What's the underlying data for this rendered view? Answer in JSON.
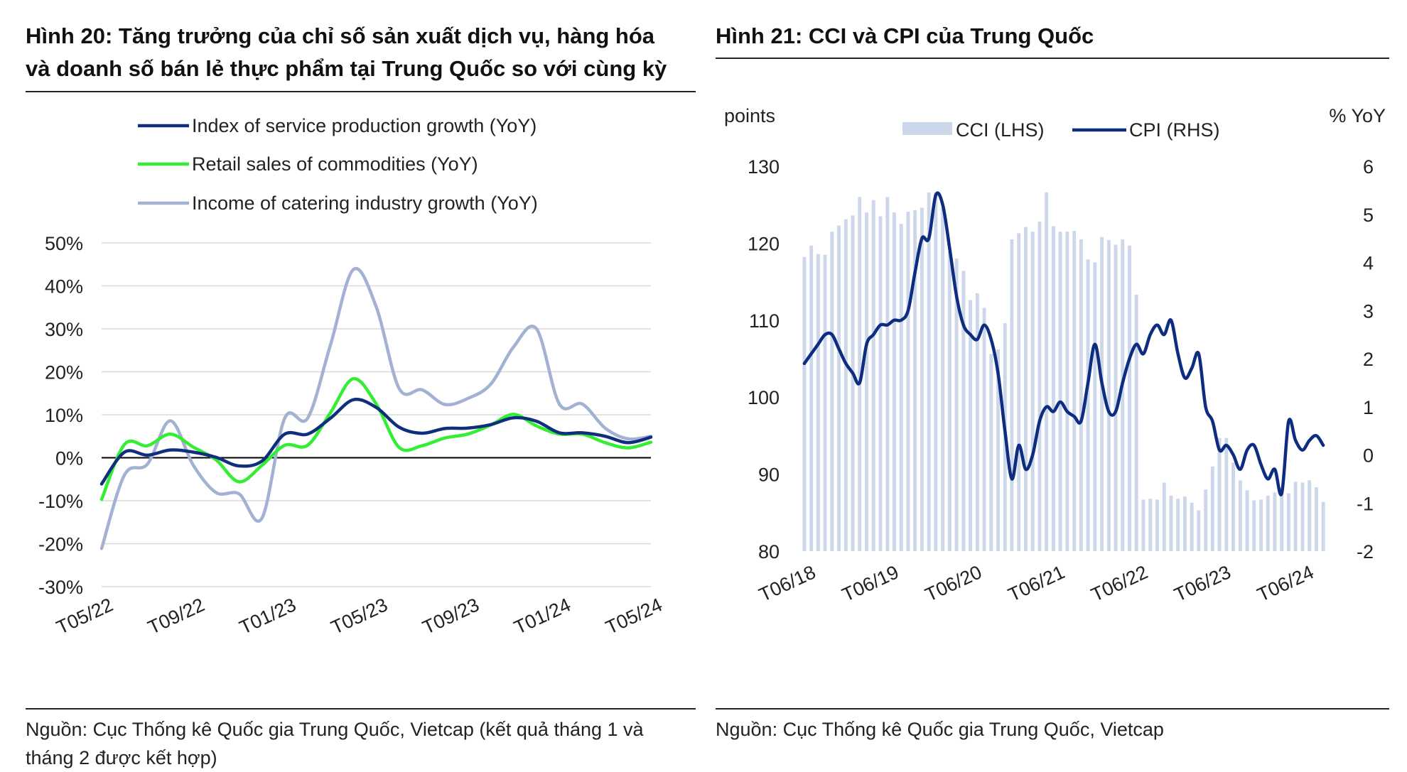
{
  "colors": {
    "service": "#0f2f7c",
    "retail": "#33ee33",
    "catering": "#a3b2d2",
    "cpi": "#0e2d80",
    "cci": "#ccd7ea",
    "grid": "#d9d9d9",
    "zero": "#000000"
  },
  "figure20": {
    "title_line1": "Hình 20: Tăng trưởng của chỉ số sản xuất dịch vụ, hàng hóa",
    "title_line2": "và doanh số bán lẻ thực phẩm tại Trung Quốc so với cùng kỳ",
    "source_line1": "Nguồn: Cục Thống kê Quốc gia Trung Quốc, Vietcap (kết quả tháng 1 và",
    "source_line2": "tháng 2 được kết hợp)"
  },
  "figure21": {
    "title": "Hình 21: CCI và CPI của Trung Quốc",
    "source": "Nguồn: Cục Thống kê Quốc gia Trung Quốc, Vietcap"
  },
  "chart_data": [
    {
      "type": "line",
      "ylim": [
        -30,
        50
      ],
      "yticks": [
        -30,
        -20,
        -10,
        0,
        10,
        20,
        30,
        40,
        50
      ],
      "ytick_labels": [
        "-30%",
        "-20%",
        "-10%",
        "0%",
        "10%",
        "20%",
        "30%",
        "40%",
        "50%"
      ],
      "x": [
        "T05/22",
        "T06/22",
        "T07/22",
        "T08/22",
        "T09/22",
        "T10/22",
        "T11/22",
        "T12/22",
        "T01/23",
        "T02/23",
        "T03/23",
        "T04/23",
        "T05/23",
        "T06/23",
        "T07/23",
        "T08/23",
        "T09/23",
        "T10/23",
        "T11/23",
        "T12/23",
        "T01/24",
        "T02/24",
        "T03/24",
        "T04/24",
        "T05/24"
      ],
      "xtick_labels": [
        "T05/22",
        "T09/22",
        "T01/23",
        "T05/23",
        "T09/23",
        "T01/24",
        "T05/24"
      ],
      "xtick_index": [
        0,
        4,
        8,
        12,
        16,
        20,
        24
      ],
      "legend": "top",
      "series": [
        {
          "name": "Index of service production growth (YoY)",
          "color_key": "service",
          "values": [
            -6.1,
            1.3,
            0.6,
            1.8,
            1.3,
            0.1,
            -1.9,
            -0.8,
            5.5,
            5.5,
            9.2,
            13.5,
            11.7,
            7.1,
            5.7,
            6.8,
            6.9,
            7.7,
            9.3,
            8.5,
            5.8,
            5.8,
            5.0,
            3.5,
            4.8
          ]
        },
        {
          "name": "Retail sales of commodities (YoY)",
          "color_key": "retail",
          "values": [
            -9.7,
            3.1,
            2.8,
            5.5,
            2.5,
            -0.5,
            -5.6,
            -1.8,
            2.9,
            2.9,
            10.5,
            18.4,
            12.5,
            2.4,
            2.8,
            4.6,
            5.5,
            7.6,
            10.1,
            7.4,
            5.5,
            5.5,
            3.5,
            2.3,
            3.6
          ]
        },
        {
          "name": "Income of catering industry growth (YoY)",
          "color_key": "catering",
          "values": [
            -21.1,
            -4.0,
            -1.5,
            8.6,
            -1.7,
            -8.1,
            -8.4,
            -14.1,
            9.2,
            9.2,
            26.3,
            43.8,
            35.1,
            16.1,
            15.8,
            12.4,
            13.8,
            17.1,
            25.8,
            30.0,
            12.5,
            12.5,
            6.9,
            4.4,
            5.0
          ]
        }
      ]
    },
    {
      "type": "bar+line",
      "ylabel_left": "points",
      "ylabel_right": "% YoY",
      "ylim_left": [
        80,
        130
      ],
      "yticks_left": [
        80,
        90,
        100,
        110,
        120,
        130
      ],
      "ylim_right": [
        -2,
        6
      ],
      "yticks_right": [
        -2,
        -1,
        0,
        1,
        2,
        3,
        4,
        5,
        6
      ],
      "xtick_labels": [
        "T06/18",
        "T06/19",
        "T06/20",
        "T06/21",
        "T06/22",
        "T06/23",
        "T06/24"
      ],
      "xtick_index": [
        0,
        12,
        24,
        36,
        48,
        60,
        72
      ],
      "legend": "top",
      "series": [
        {
          "name": "CCI (LHS)",
          "kind": "bar",
          "axis": "left",
          "color_key": "cci",
          "values": [
            118.2,
            119.7,
            118.6,
            118.5,
            121.5,
            122.3,
            123.1,
            123.6,
            126.0,
            124.0,
            125.6,
            123.5,
            126.0,
            124.0,
            122.5,
            124.1,
            124.3,
            124.6,
            126.6,
            126.6,
            124.6,
            118.9,
            118.0,
            116.4,
            112.6,
            113.5,
            111.6,
            105.6,
            106.2,
            109.6,
            120.5,
            121.3,
            122.1,
            121.5,
            122.8,
            126.6,
            122.2,
            121.5,
            121.5,
            121.6,
            120.5,
            117.9,
            117.5,
            120.8,
            120.4,
            119.8,
            120.5,
            119.7,
            113.3,
            86.7,
            86.8,
            86.7,
            88.9,
            87.2,
            86.8,
            87.1,
            86.3,
            85.3,
            88.0,
            91.0,
            94.7,
            94.7,
            91.5,
            89.2,
            87.9,
            86.6,
            86.7,
            87.2,
            87.6,
            88.3,
            87.5,
            89.0,
            88.9,
            89.2,
            88.3,
            86.4
          ]
        },
        {
          "name": "CPI (RHS)",
          "kind": "line",
          "axis": "right",
          "color_key": "cpi",
          "values": [
            1.9,
            2.1,
            2.3,
            2.5,
            2.5,
            2.2,
            1.9,
            1.7,
            1.5,
            2.3,
            2.5,
            2.7,
            2.7,
            2.8,
            2.8,
            3.0,
            3.8,
            4.5,
            4.5,
            5.4,
            5.2,
            4.3,
            3.3,
            2.7,
            2.5,
            2.4,
            2.7,
            2.4,
            1.7,
            0.5,
            -0.5,
            0.2,
            -0.3,
            0.0,
            0.7,
            1.0,
            0.9,
            1.1,
            0.9,
            0.8,
            0.7,
            1.5,
            2.3,
            1.5,
            0.9,
            0.9,
            1.5,
            2.0,
            2.3,
            2.1,
            2.5,
            2.7,
            2.5,
            2.8,
            2.1,
            1.6,
            1.8,
            2.1,
            1.0,
            0.7,
            0.1,
            0.2,
            0.0,
            -0.3,
            0.1,
            0.2,
            -0.2,
            -0.5,
            -0.3,
            -0.8,
            0.7,
            0.3,
            0.1,
            0.3,
            0.4,
            0.2
          ]
        }
      ]
    }
  ]
}
